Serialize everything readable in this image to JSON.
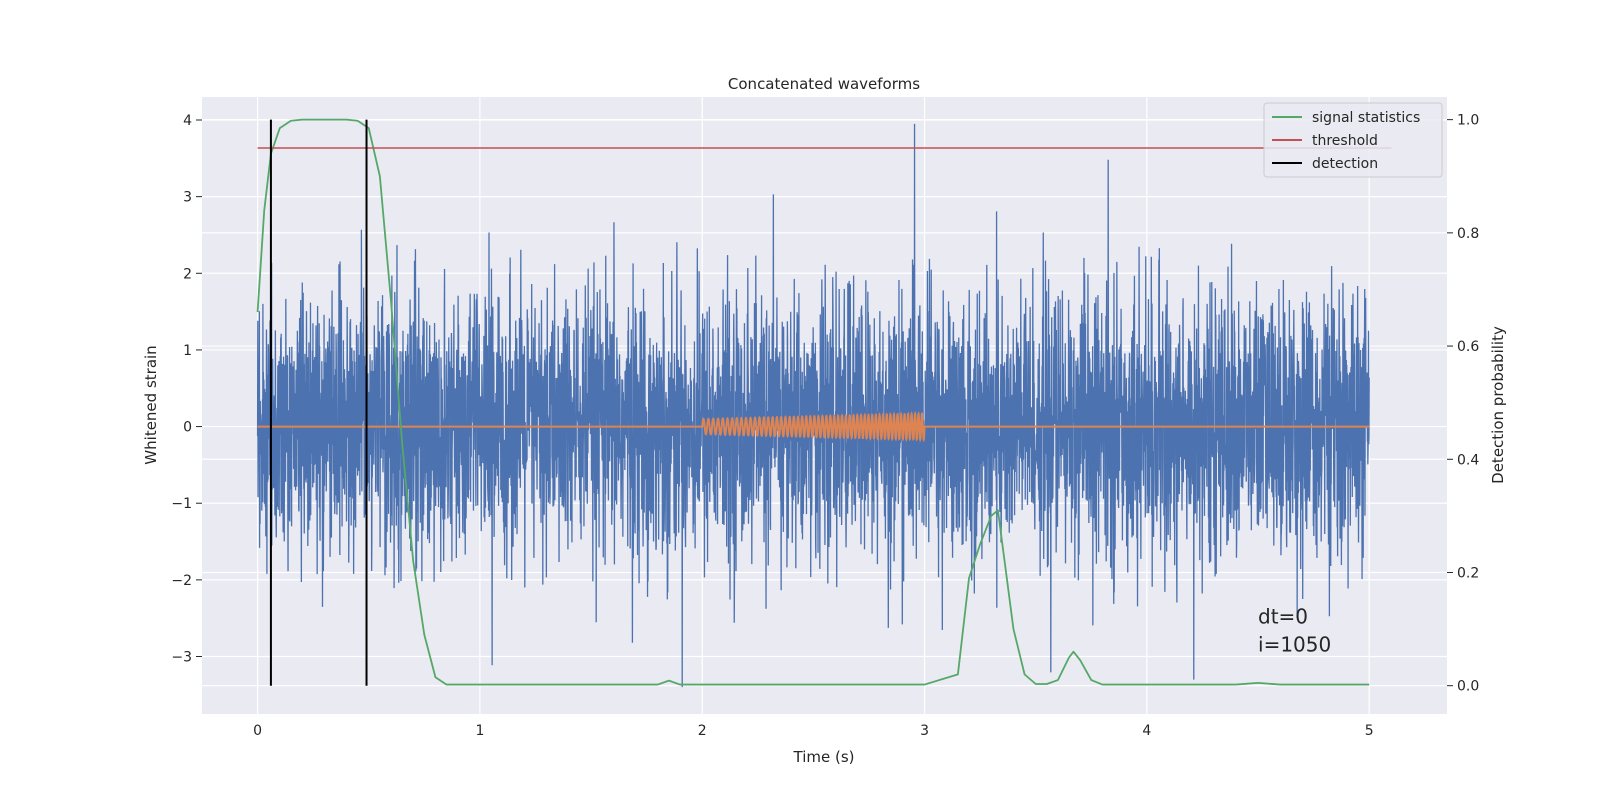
{
  "chart_data": {
    "type": "line",
    "title": "Concatenated waveforms",
    "xlabel": "Time (s)",
    "ylabel": "Whitened strain",
    "y2label": "Detection probability",
    "xlim": [
      -0.25,
      5.35
    ],
    "ylim": [
      -3.75,
      4.3
    ],
    "y2lim": [
      -0.05,
      1.04
    ],
    "xticks": [
      0,
      1,
      2,
      3,
      4,
      5
    ],
    "yticks": [
      -3,
      -2,
      -1,
      0,
      1,
      2,
      3,
      4
    ],
    "yticklabels": [
      "−3",
      "−2",
      "−1",
      "0",
      "1",
      "2",
      "3",
      "4"
    ],
    "y2ticks": [
      0.0,
      0.2,
      0.4,
      0.6,
      0.8,
      1.0
    ],
    "y2ticklabels": [
      "0.0",
      "0.2",
      "0.4",
      "0.6",
      "0.8",
      "1.0"
    ],
    "grid": true,
    "legend_position": "top-right",
    "legend": [
      {
        "name": "signal statistics",
        "color": "#55a868"
      },
      {
        "name": "threshold",
        "color": "#c44e52"
      },
      {
        "name": "detection",
        "color": "#000000"
      }
    ],
    "series": [
      {
        "name": "strain",
        "axis": "left",
        "color": "#4c72b0",
        "x_range": [
          0,
          5
        ],
        "mean": 0,
        "std": 0.85,
        "min": -3.4,
        "max": 3.95
      },
      {
        "name": "template",
        "axis": "left",
        "color": "#dd8452",
        "x": [
          0,
          2,
          2,
          3,
          3,
          5
        ],
        "chirp_start": 2,
        "chirp_end": 3,
        "amplitude_start": 0.1,
        "amplitude_end": 0.17
      },
      {
        "name": "signal statistics",
        "axis": "right",
        "color": "#55a868",
        "x": [
          0,
          0.03,
          0.06,
          0.1,
          0.15,
          0.2,
          0.3,
          0.4,
          0.45,
          0.5,
          0.55,
          0.6,
          0.65,
          0.7,
          0.75,
          0.8,
          0.85,
          1.0,
          1.5,
          1.8,
          1.85,
          1.9,
          2.0,
          3.0,
          3.15,
          3.2,
          3.25,
          3.3,
          3.33,
          3.36,
          3.4,
          3.45,
          3.5,
          3.55,
          3.6,
          3.65,
          3.67,
          3.7,
          3.75,
          3.8,
          4.4,
          4.5,
          4.6,
          5.0
        ],
        "y": [
          0.66,
          0.84,
          0.94,
          0.985,
          0.998,
          1.0,
          1.0,
          1.0,
          0.998,
          0.985,
          0.9,
          0.68,
          0.43,
          0.22,
          0.09,
          0.015,
          0.002,
          0.002,
          0.002,
          0.002,
          0.009,
          0.002,
          0.002,
          0.002,
          0.02,
          0.19,
          0.25,
          0.3,
          0.31,
          0.22,
          0.1,
          0.02,
          0.003,
          0.003,
          0.01,
          0.05,
          0.06,
          0.045,
          0.01,
          0.002,
          0.002,
          0.005,
          0.002,
          0.002
        ]
      },
      {
        "name": "threshold",
        "axis": "right",
        "color": "#c44e52",
        "x": [
          0,
          5.1
        ],
        "y": [
          0.95,
          0.95
        ]
      },
      {
        "name": "detection",
        "axis": "right",
        "color": "#000000",
        "x": [
          0.06,
          0.49
        ],
        "y_range": [
          0.0,
          1.0
        ]
      }
    ],
    "annotations": [
      {
        "text": "dt=0",
        "x": 4.5,
        "y": 0.11
      },
      {
        "text": "i=1050",
        "x": 4.5,
        "y": 0.06
      }
    ]
  }
}
